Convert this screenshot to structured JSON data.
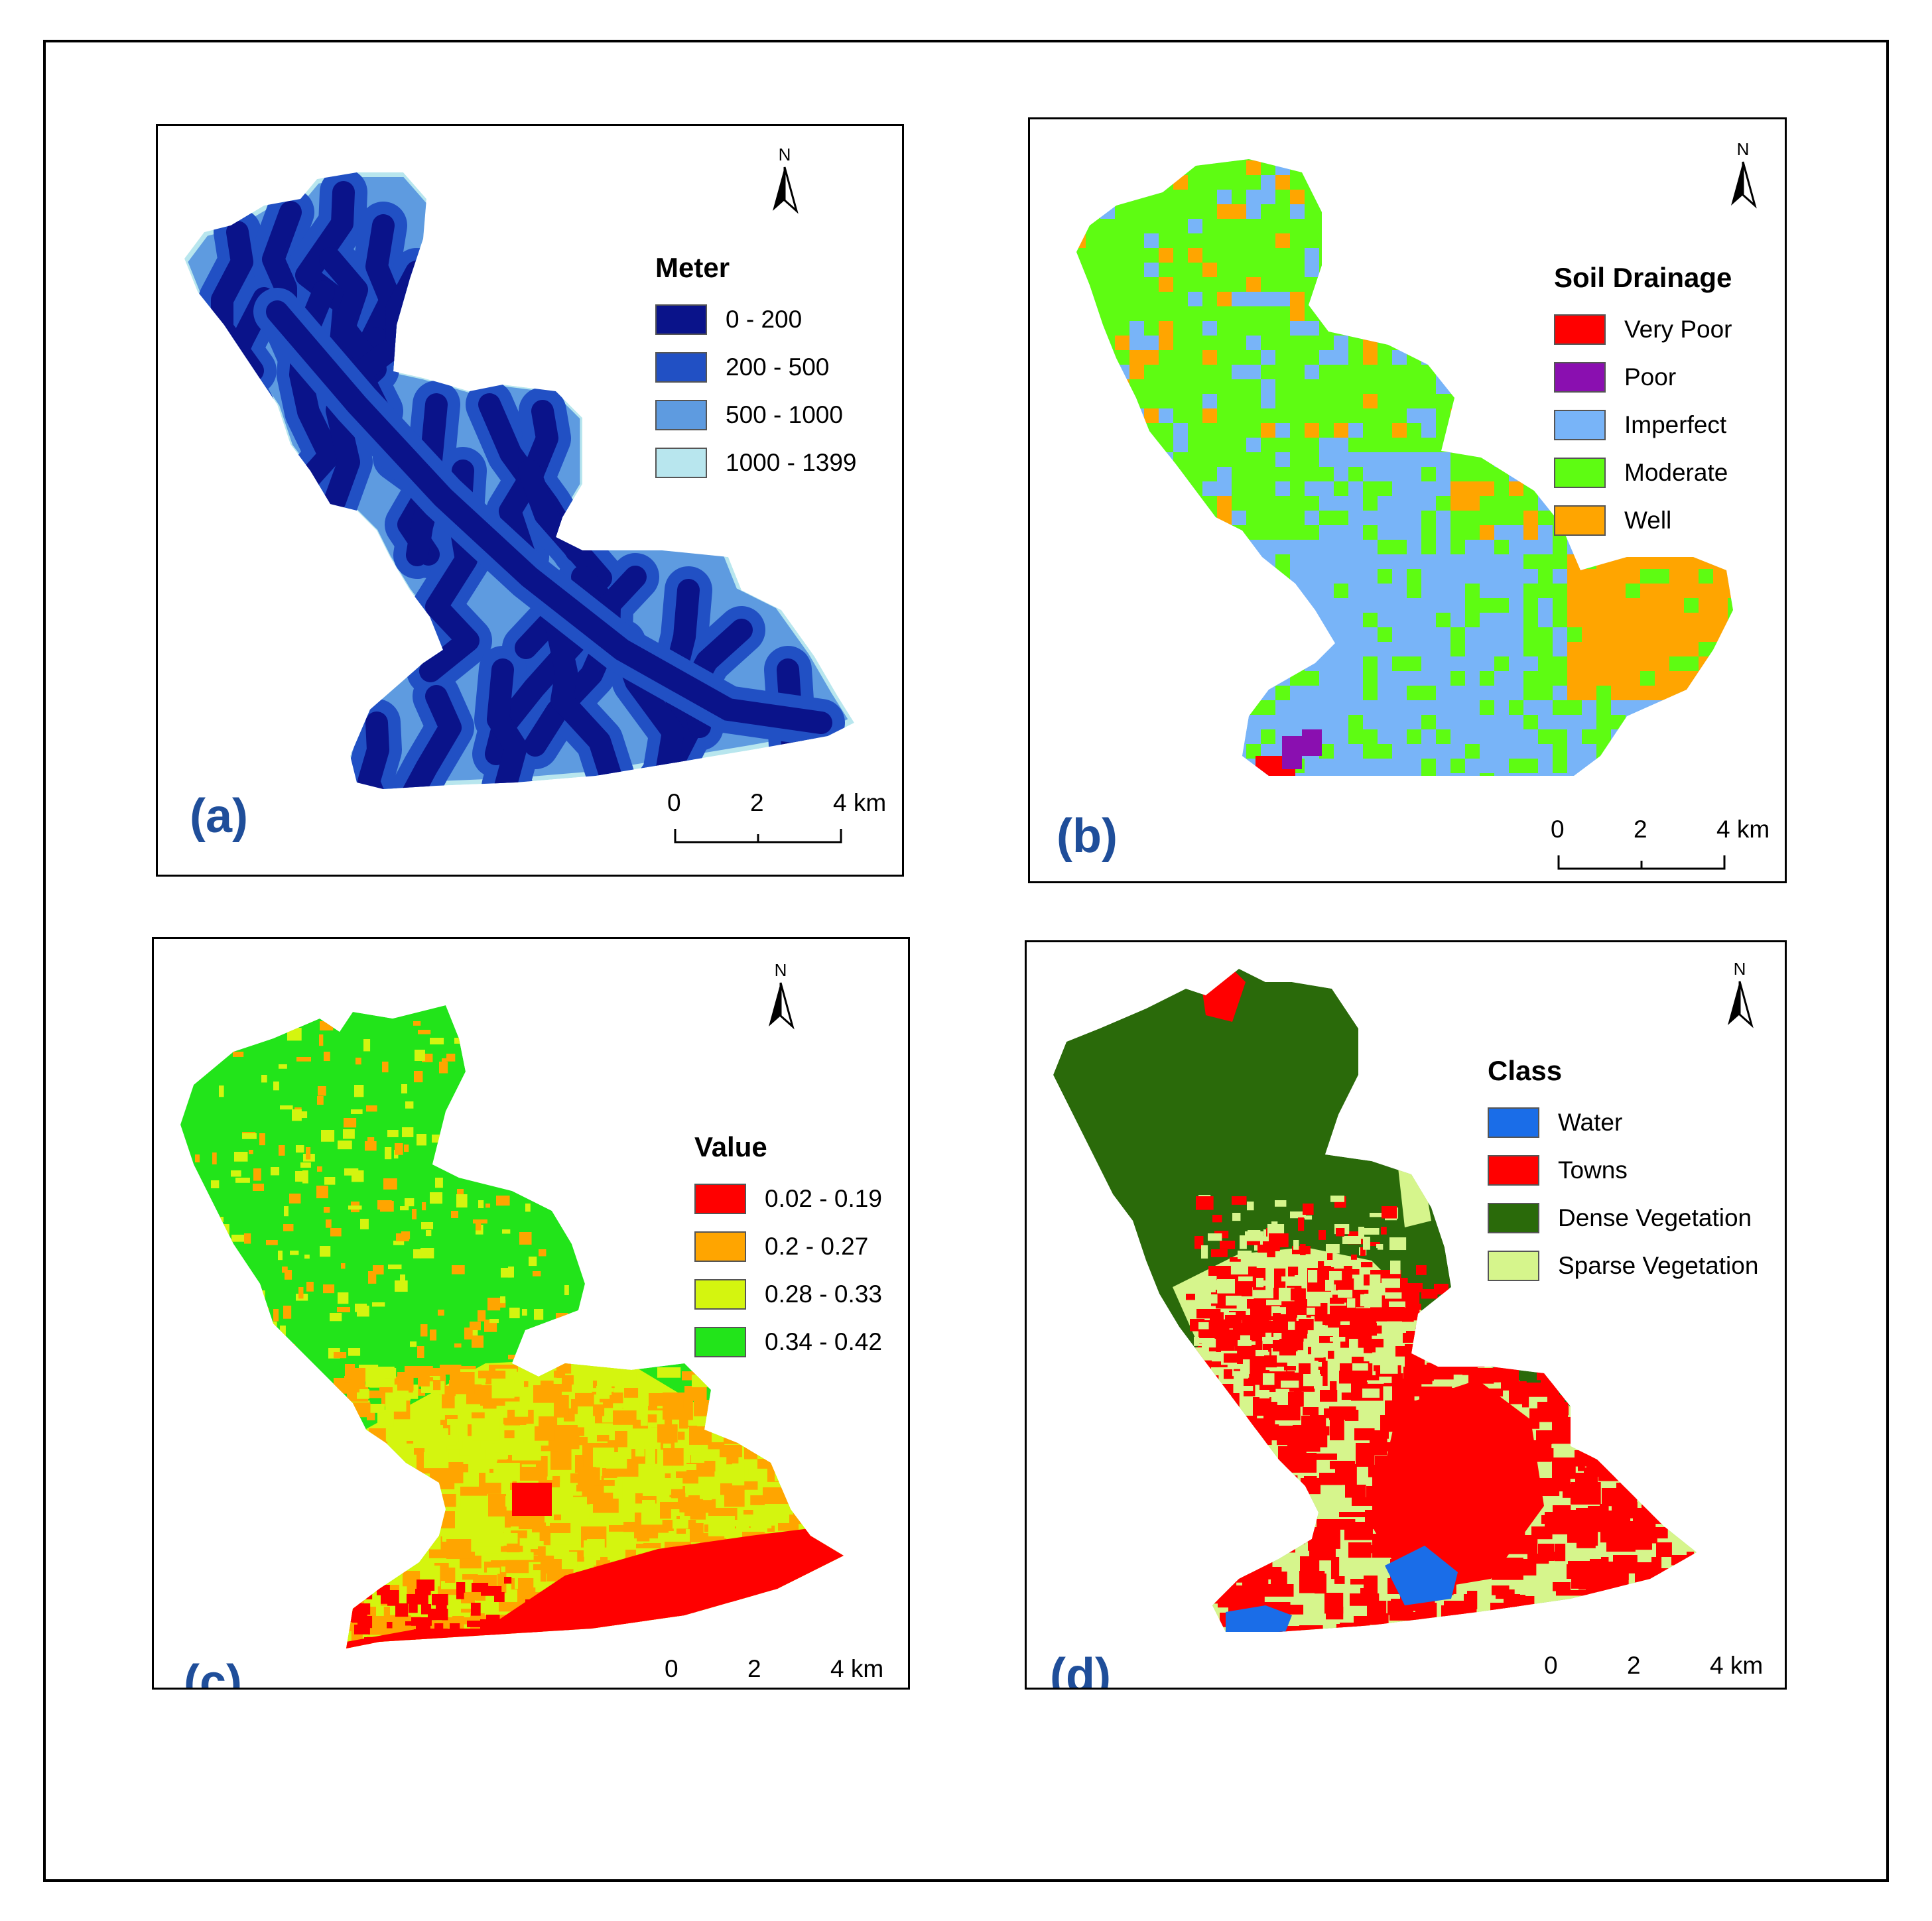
{
  "north_symbol": "N",
  "colors": {
    "panel_label": "#1f4e9a"
  },
  "panels": {
    "a": {
      "label": "(a)",
      "legend_title": "Meter",
      "legend": [
        {
          "label": "0 - 200",
          "color": "#0a138a"
        },
        {
          "label": "200 - 500",
          "color": "#2150c4"
        },
        {
          "label": "500 - 1000",
          "color": "#5e9be0"
        },
        {
          "label": "1000 - 1399",
          "color": "#b8e6ee"
        }
      ],
      "scale": {
        "ticks": [
          "0",
          "2",
          "4 km"
        ]
      }
    },
    "b": {
      "label": "(b)",
      "legend_title": "Soil Drainage",
      "legend": [
        {
          "label": "Very Poor",
          "color": "#ff0000"
        },
        {
          "label": "Poor",
          "color": "#8a0fb0"
        },
        {
          "label": "Imperfect",
          "color": "#78b4f8"
        },
        {
          "label": "Moderate",
          "color": "#5efc12"
        },
        {
          "label": "Well",
          "color": "#ffa500"
        }
      ],
      "scale": {
        "ticks": [
          "0",
          "2",
          "4 km"
        ]
      }
    },
    "c": {
      "label": "(c)",
      "legend_title": "Value",
      "legend": [
        {
          "label": "0.02 - 0.19",
          "color": "#ff0000"
        },
        {
          "label": "0.2 - 0.27",
          "color": "#ffa500"
        },
        {
          "label": "0.28 - 0.33",
          "color": "#d4f50f"
        },
        {
          "label": "0.34 - 0.42",
          "color": "#22e41a"
        }
      ],
      "scale": {
        "ticks": [
          "0",
          "2",
          "4 km"
        ]
      }
    },
    "d": {
      "label": "(d)",
      "legend_title": "Class",
      "legend": [
        {
          "label": "Water",
          "color": "#1a6de8"
        },
        {
          "label": "Towns",
          "color": "#ff0000"
        },
        {
          "label": "Dense Vegetation",
          "color": "#2a6a0a"
        },
        {
          "label": "Sparse Vegetation",
          "color": "#d6f58c"
        }
      ],
      "scale": {
        "ticks": [
          "0",
          "2",
          "4 km"
        ]
      }
    }
  }
}
